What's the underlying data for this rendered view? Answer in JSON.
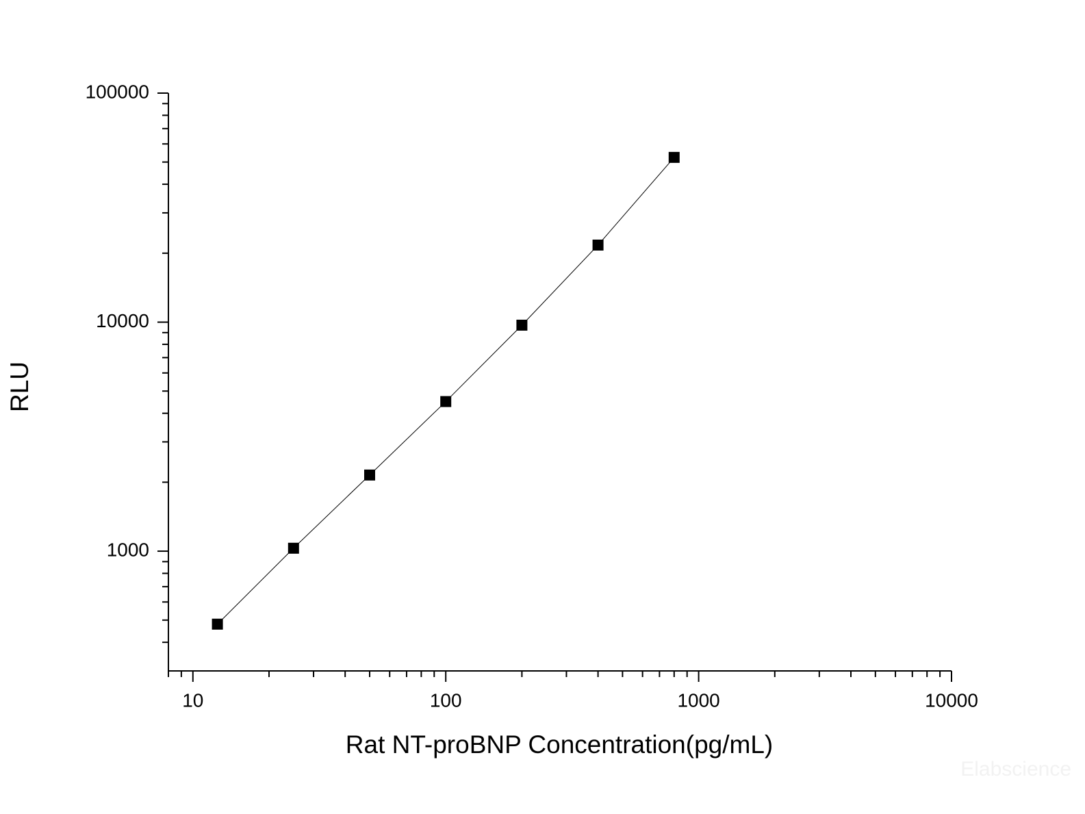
{
  "chart_data": {
    "type": "line",
    "x_label": "Rat NT-proBNP Concentration(pg/mL)",
    "y_label": "RLU",
    "x": [
      12.5,
      25,
      50,
      100,
      200,
      400,
      800
    ],
    "values": [
      480,
      1030,
      2150,
      4500,
      9700,
      21700,
      52400
    ],
    "color": "#000000",
    "marker": "square",
    "xscale": "log",
    "yscale": "log",
    "xlim": [
      8,
      10000
    ],
    "ylim": [
      300,
      100000
    ],
    "xticks": [
      10,
      100,
      1000,
      10000
    ],
    "yticks": [
      1000,
      10000,
      100000
    ],
    "xminorticks": [
      8,
      9,
      20,
      30,
      40,
      50,
      60,
      70,
      80,
      90,
      200,
      300,
      400,
      500,
      600,
      700,
      800,
      900,
      2000,
      3000,
      4000,
      5000,
      6000,
      7000,
      8000,
      9000
    ],
    "yminorticks": [
      400,
      500,
      600,
      700,
      800,
      900,
      2000,
      3000,
      4000,
      5000,
      6000,
      7000,
      8000,
      9000,
      20000,
      30000,
      40000,
      50000,
      60000,
      70000,
      80000,
      90000
    ],
    "grid": false,
    "watermark": "Elabscience"
  }
}
